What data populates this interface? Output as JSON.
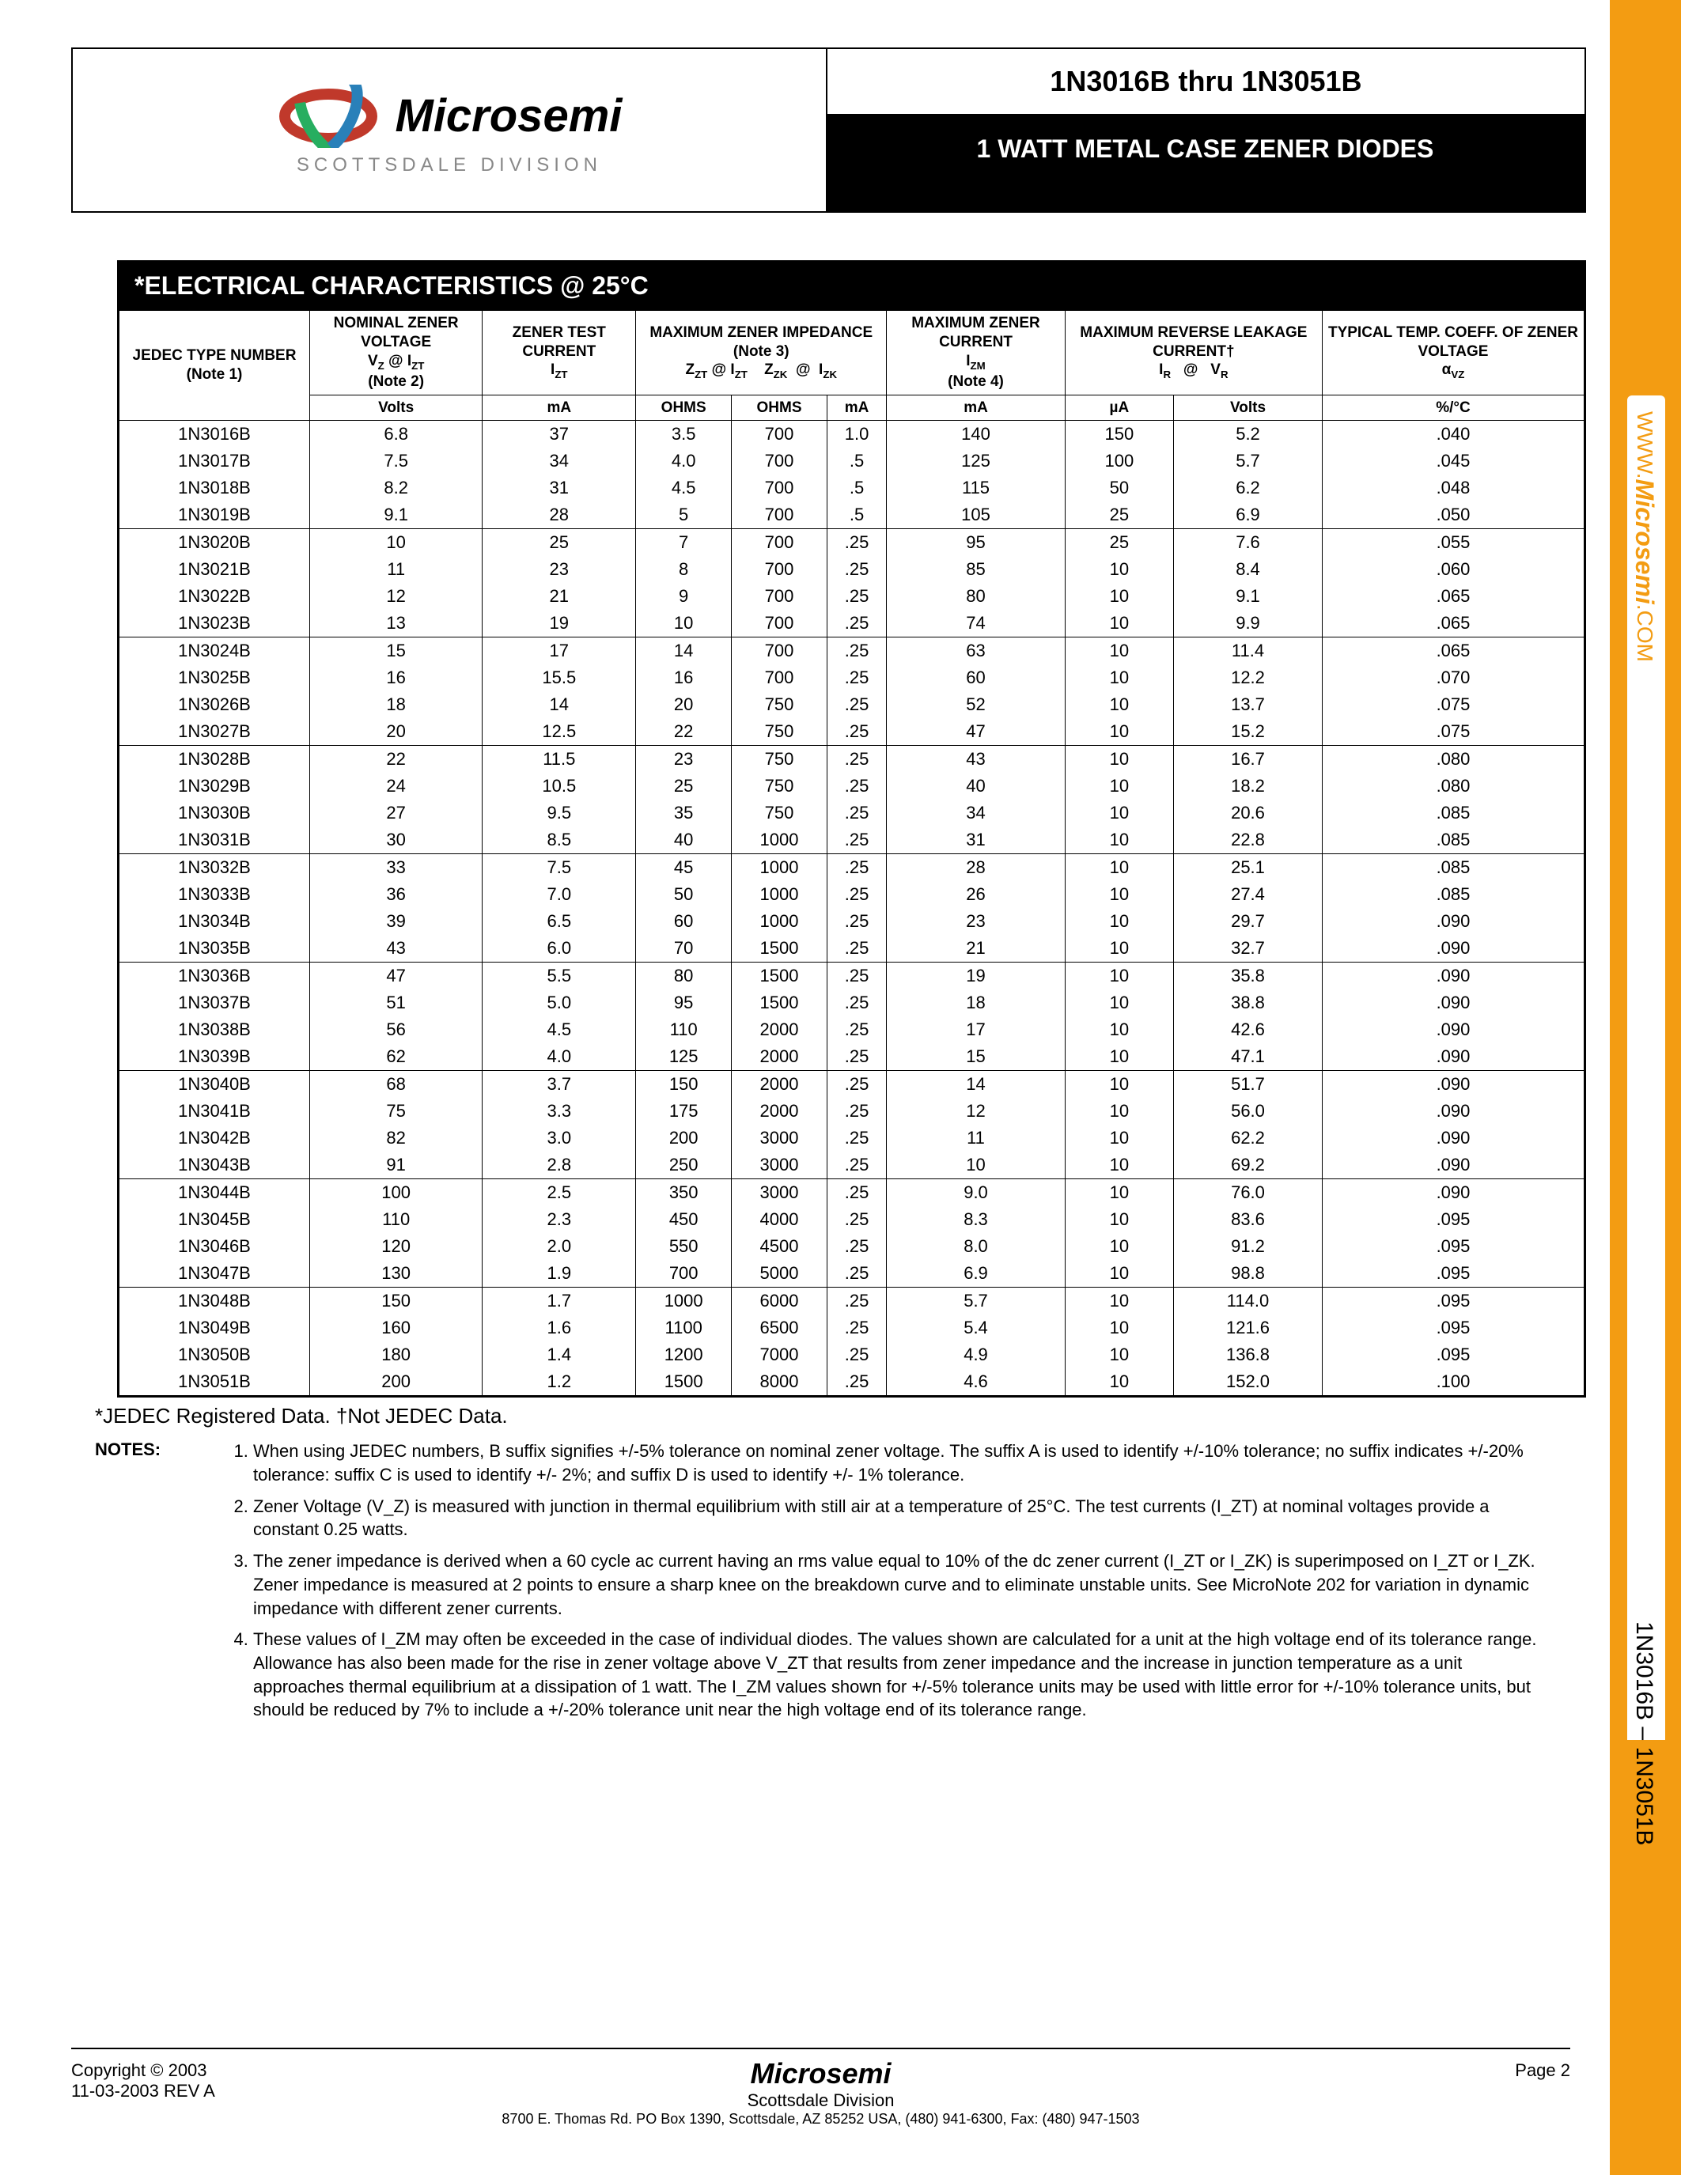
{
  "header": {
    "brand": "Microsemi",
    "division": "SCOTTSDALE DIVISION",
    "title": "1N3016B thru 1N3051B",
    "subtitle": "1 WATT METAL CASE ZENER DIODES"
  },
  "sidebar": {
    "url_prefix": "WWW.",
    "url_brand": "Microsemi",
    "url_suffix": ".COM",
    "part_range": "1N3016B – 1N3051B"
  },
  "section_title": "*ELECTRICAL CHARACTERISTICS @ 25°C",
  "colors": {
    "accent": "#f39c12"
  },
  "table": {
    "headers": {
      "c0a": "JEDEC TYPE NUMBER (Note 1)",
      "c1a": "NOMINAL ZENER VOLTAGE",
      "c1b": "V",
      "c1b2": " @ I",
      "c1c": "(Note 2)",
      "c2a": "ZENER TEST CURRENT",
      "c2b": "I",
      "c3a": "MAXIMUM ZENER IMPEDANCE (Note 3)",
      "c3b1": "Z",
      "c3b2": " @ I",
      "c3c1": "Z",
      "c3c2": " @ I",
      "c4a": "MAXIMUM ZENER CURRENT",
      "c4b": "I",
      "c4c": "(Note 4)",
      "c5a": "MAXIMUM REVERSE LEAKAGE CURRENT†",
      "c5b1": "I",
      "c5b2": " @ V",
      "c6a": "TYPICAL TEMP. COEFF. OF ZENER VOLTAGE",
      "c6b": "α",
      "u0": "",
      "u1": "Volts",
      "u2": "mA",
      "u3": "OHMS",
      "u4": "OHMS",
      "u5": "mA",
      "u6": "mA",
      "u7": "µA",
      "u8": "Volts",
      "u9": "%/°C"
    },
    "rows": [
      [
        "1N3016B",
        "6.8",
        "37",
        "3.5",
        "700",
        "1.0",
        "140",
        "150",
        "5.2",
        ".040"
      ],
      [
        "1N3017B",
        "7.5",
        "34",
        "4.0",
        "700",
        ".5",
        "125",
        "100",
        "5.7",
        ".045"
      ],
      [
        "1N3018B",
        "8.2",
        "31",
        "4.5",
        "700",
        ".5",
        "115",
        "50",
        "6.2",
        ".048"
      ],
      [
        "1N3019B",
        "9.1",
        "28",
        "5",
        "700",
        ".5",
        "105",
        "25",
        "6.9",
        ".050"
      ],
      [
        "1N3020B",
        "10",
        "25",
        "7",
        "700",
        ".25",
        "95",
        "25",
        "7.6",
        ".055"
      ],
      [
        "1N3021B",
        "11",
        "23",
        "8",
        "700",
        ".25",
        "85",
        "10",
        "8.4",
        ".060"
      ],
      [
        "1N3022B",
        "12",
        "21",
        "9",
        "700",
        ".25",
        "80",
        "10",
        "9.1",
        ".065"
      ],
      [
        "1N3023B",
        "13",
        "19",
        "10",
        "700",
        ".25",
        "74",
        "10",
        "9.9",
        ".065"
      ],
      [
        "1N3024B",
        "15",
        "17",
        "14",
        "700",
        ".25",
        "63",
        "10",
        "11.4",
        ".065"
      ],
      [
        "1N3025B",
        "16",
        "15.5",
        "16",
        "700",
        ".25",
        "60",
        "10",
        "12.2",
        ".070"
      ],
      [
        "1N3026B",
        "18",
        "14",
        "20",
        "750",
        ".25",
        "52",
        "10",
        "13.7",
        ".075"
      ],
      [
        "1N3027B",
        "20",
        "12.5",
        "22",
        "750",
        ".25",
        "47",
        "10",
        "15.2",
        ".075"
      ],
      [
        "1N3028B",
        "22",
        "11.5",
        "23",
        "750",
        ".25",
        "43",
        "10",
        "16.7",
        ".080"
      ],
      [
        "1N3029B",
        "24",
        "10.5",
        "25",
        "750",
        ".25",
        "40",
        "10",
        "18.2",
        ".080"
      ],
      [
        "1N3030B",
        "27",
        "9.5",
        "35",
        "750",
        ".25",
        "34",
        "10",
        "20.6",
        ".085"
      ],
      [
        "1N3031B",
        "30",
        "8.5",
        "40",
        "1000",
        ".25",
        "31",
        "10",
        "22.8",
        ".085"
      ],
      [
        "1N3032B",
        "33",
        "7.5",
        "45",
        "1000",
        ".25",
        "28",
        "10",
        "25.1",
        ".085"
      ],
      [
        "1N3033B",
        "36",
        "7.0",
        "50",
        "1000",
        ".25",
        "26",
        "10",
        "27.4",
        ".085"
      ],
      [
        "1N3034B",
        "39",
        "6.5",
        "60",
        "1000",
        ".25",
        "23",
        "10",
        "29.7",
        ".090"
      ],
      [
        "1N3035B",
        "43",
        "6.0",
        "70",
        "1500",
        ".25",
        "21",
        "10",
        "32.7",
        ".090"
      ],
      [
        "1N3036B",
        "47",
        "5.5",
        "80",
        "1500",
        ".25",
        "19",
        "10",
        "35.8",
        ".090"
      ],
      [
        "1N3037B",
        "51",
        "5.0",
        "95",
        "1500",
        ".25",
        "18",
        "10",
        "38.8",
        ".090"
      ],
      [
        "1N3038B",
        "56",
        "4.5",
        "110",
        "2000",
        ".25",
        "17",
        "10",
        "42.6",
        ".090"
      ],
      [
        "1N3039B",
        "62",
        "4.0",
        "125",
        "2000",
        ".25",
        "15",
        "10",
        "47.1",
        ".090"
      ],
      [
        "1N3040B",
        "68",
        "3.7",
        "150",
        "2000",
        ".25",
        "14",
        "10",
        "51.7",
        ".090"
      ],
      [
        "1N3041B",
        "75",
        "3.3",
        "175",
        "2000",
        ".25",
        "12",
        "10",
        "56.0",
        ".090"
      ],
      [
        "1N3042B",
        "82",
        "3.0",
        "200",
        "3000",
        ".25",
        "11",
        "10",
        "62.2",
        ".090"
      ],
      [
        "1N3043B",
        "91",
        "2.8",
        "250",
        "3000",
        ".25",
        "10",
        "10",
        "69.2",
        ".090"
      ],
      [
        "1N3044B",
        "100",
        "2.5",
        "350",
        "3000",
        ".25",
        "9.0",
        "10",
        "76.0",
        ".090"
      ],
      [
        "1N3045B",
        "110",
        "2.3",
        "450",
        "4000",
        ".25",
        "8.3",
        "10",
        "83.6",
        ".095"
      ],
      [
        "1N3046B",
        "120",
        "2.0",
        "550",
        "4500",
        ".25",
        "8.0",
        "10",
        "91.2",
        ".095"
      ],
      [
        "1N3047B",
        "130",
        "1.9",
        "700",
        "5000",
        ".25",
        "6.9",
        "10",
        "98.8",
        ".095"
      ],
      [
        "1N3048B",
        "150",
        "1.7",
        "1000",
        "6000",
        ".25",
        "5.7",
        "10",
        "114.0",
        ".095"
      ],
      [
        "1N3049B",
        "160",
        "1.6",
        "1100",
        "6500",
        ".25",
        "5.4",
        "10",
        "121.6",
        ".095"
      ],
      [
        "1N3050B",
        "180",
        "1.4",
        "1200",
        "7000",
        ".25",
        "4.9",
        "10",
        "136.8",
        ".095"
      ],
      [
        "1N3051B",
        "200",
        "1.2",
        "1500",
        "8000",
        ".25",
        "4.6",
        "10",
        "152.0",
        ".100"
      ]
    ],
    "group_breaks": [
      3,
      7,
      11,
      15,
      19,
      23,
      27,
      31,
      35
    ]
  },
  "footnote": "*JEDEC Registered Data.    †Not JEDEC Data.",
  "notes_label": "NOTES:",
  "notes": [
    "When using JEDEC numbers, B suffix signifies +/-5% tolerance on nominal zener voltage. The suffix A is used to identify +/-10% tolerance; no suffix indicates +/-20% tolerance: suffix C is used to identify +/- 2%; and suffix D is used to identify +/- 1% tolerance.",
    "Zener Voltage (V_Z) is measured with junction in thermal equilibrium with still air at a temperature of 25°C. The test currents (I_ZT) at nominal voltages provide a constant 0.25 watts.",
    "The zener impedance is derived when a 60 cycle ac current having an rms value equal to 10% of the dc zener current (I_ZT or I_ZK) is superimposed on I_ZT or I_ZK. Zener impedance is measured at 2 points to ensure a sharp knee on the breakdown curve and to eliminate unstable units. See MicroNote 202 for variation in dynamic impedance with different zener currents.",
    "These values of I_ZM may often be exceeded in the case of individual diodes. The values shown are calculated for a unit at the high voltage end of its tolerance range. Allowance has also been made for the rise in zener voltage above V_ZT that results from zener impedance and the increase in junction temperature as a unit approaches thermal equilibrium at a dissipation of 1 watt. The I_ZM values shown for +/-5% tolerance units may be used with little error for +/-10% tolerance units, but should be reduced by 7% to include a +/-20% tolerance unit near the high voltage end of its tolerance range."
  ],
  "footer": {
    "copyright": "Copyright © 2003",
    "rev": "11-03-2003  REV A",
    "brand": "Microsemi",
    "div": "Scottsdale Division",
    "addr": "8700 E. Thomas Rd. PO Box 1390, Scottsdale, AZ 85252 USA, (480) 941-6300, Fax: (480) 947-1503",
    "page": "Page 2"
  }
}
